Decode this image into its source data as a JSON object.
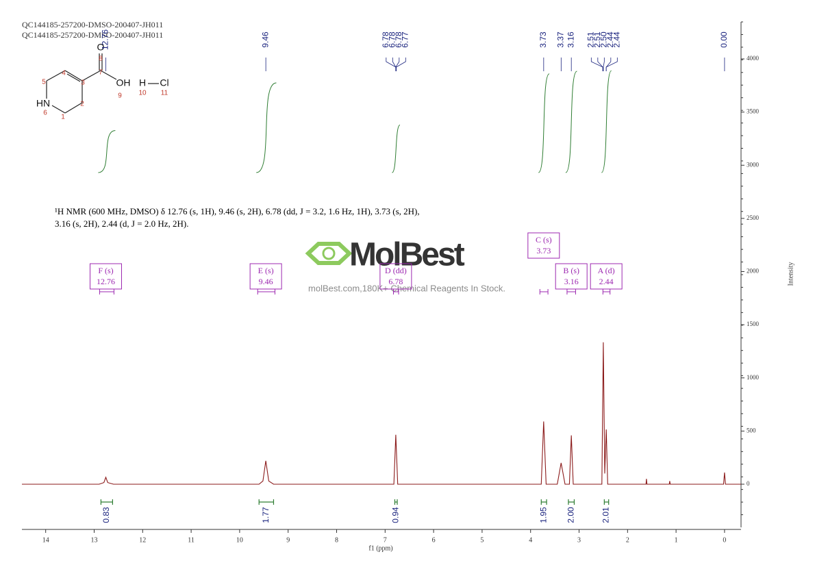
{
  "header": {
    "lines": [
      "QC144185-257200-DMSO-200407-JH011",
      "QC144185-257200-DMSO-200407-JH011"
    ]
  },
  "structure": {
    "labels": [
      "O",
      "OH",
      "H",
      "Cl",
      "HN"
    ],
    "numbers": [
      "1",
      "2",
      "3",
      "4",
      "5",
      "6",
      "7",
      "8",
      "9",
      "10",
      "11"
    ]
  },
  "description": {
    "lines": [
      "¹H NMR (600 MHz, DMSO) δ 12.76 (s, 1H), 9.46 (s, 2H), 6.78 (dd, J = 3.2, 1.6 Hz, 1H), 3.73 (s, 2H),",
      "3.16 (s, 2H), 2.44 (d, J = 2.0 Hz, 2H)."
    ]
  },
  "watermark": {
    "logo": "MolBest",
    "tagline": "molBest.com,180K+ Chemical Reagents In Stock."
  },
  "chart_data": {
    "type": "line",
    "x_label": "f1 (ppm)",
    "y_label": "Intensity",
    "xlim": [
      14.49,
      -0.34
    ],
    "xticks": [
      14,
      13,
      12,
      11,
      10,
      9,
      8,
      7,
      6,
      5,
      4,
      3,
      2,
      1,
      0
    ],
    "ylim": [
      -406,
      4348
    ],
    "yticks": [
      0,
      500,
      1000,
      1500,
      2000,
      2500,
      3000,
      3500,
      4000
    ],
    "series": [
      {
        "name": "spectrum",
        "color": "#8b1a1a",
        "x": [
          14.49,
          12.9,
          12.8,
          12.76,
          12.72,
          12.6,
          9.6,
          9.52,
          9.46,
          9.4,
          9.3,
          6.82,
          6.78,
          6.74,
          3.78,
          3.73,
          3.68,
          3.45,
          3.37,
          3.29,
          3.2,
          3.16,
          3.12,
          2.53,
          2.5,
          2.47,
          2.44,
          2.41,
          1.62,
          1.61,
          1.6,
          1.14,
          1.13,
          1.12,
          0.02,
          0,
          -0.02,
          -0.34
        ],
        "values": [
          0,
          0,
          15,
          65,
          15,
          0,
          0,
          30,
          220,
          30,
          0,
          0,
          465,
          0,
          0,
          590,
          0,
          0,
          200,
          0,
          0,
          460,
          0,
          0,
          1335,
          100,
          515,
          0,
          0,
          50,
          0,
          0,
          30,
          0,
          0,
          110,
          0,
          0
        ]
      }
    ],
    "peak_labels": [
      12.76,
      9.46,
      6.78,
      6.78,
      6.78,
      6.77,
      3.73,
      3.37,
      3.16,
      2.51,
      2.51,
      {
        "value": 2.5,
        "label": "2.50"
      },
      2.44,
      2.44,
      {
        "value": 0,
        "label": "0.00"
      }
    ],
    "integrals": [
      {
        "range": [
          12.86,
          12.62
        ],
        "value": 0.83
      },
      {
        "range": [
          9.6,
          9.3
        ],
        "value": 1.77
      },
      {
        "range": [
          6.8,
          6.75
        ],
        "value": 0.94
      },
      {
        "range": [
          3.78,
          3.67
        ],
        "value": 1.95
      },
      {
        "range": [
          3.22,
          3.1
        ],
        "value": {
          "value": 2,
          "label": "2.00"
        }
      },
      {
        "range": [
          2.48,
          2.39
        ],
        "value": 2.01
      }
    ],
    "multiplets": [
      {
        "label": "F (s)",
        "shift": 12.76
      },
      {
        "label": "E (s)",
        "shift": 9.46
      },
      {
        "label": "D (dd)",
        "shift": 6.78
      },
      {
        "label": "C (s)",
        "shift": 3.73
      },
      {
        "label": "B (s)",
        "shift": 3.16
      },
      {
        "label": "A (d)",
        "shift": 2.44
      }
    ]
  }
}
